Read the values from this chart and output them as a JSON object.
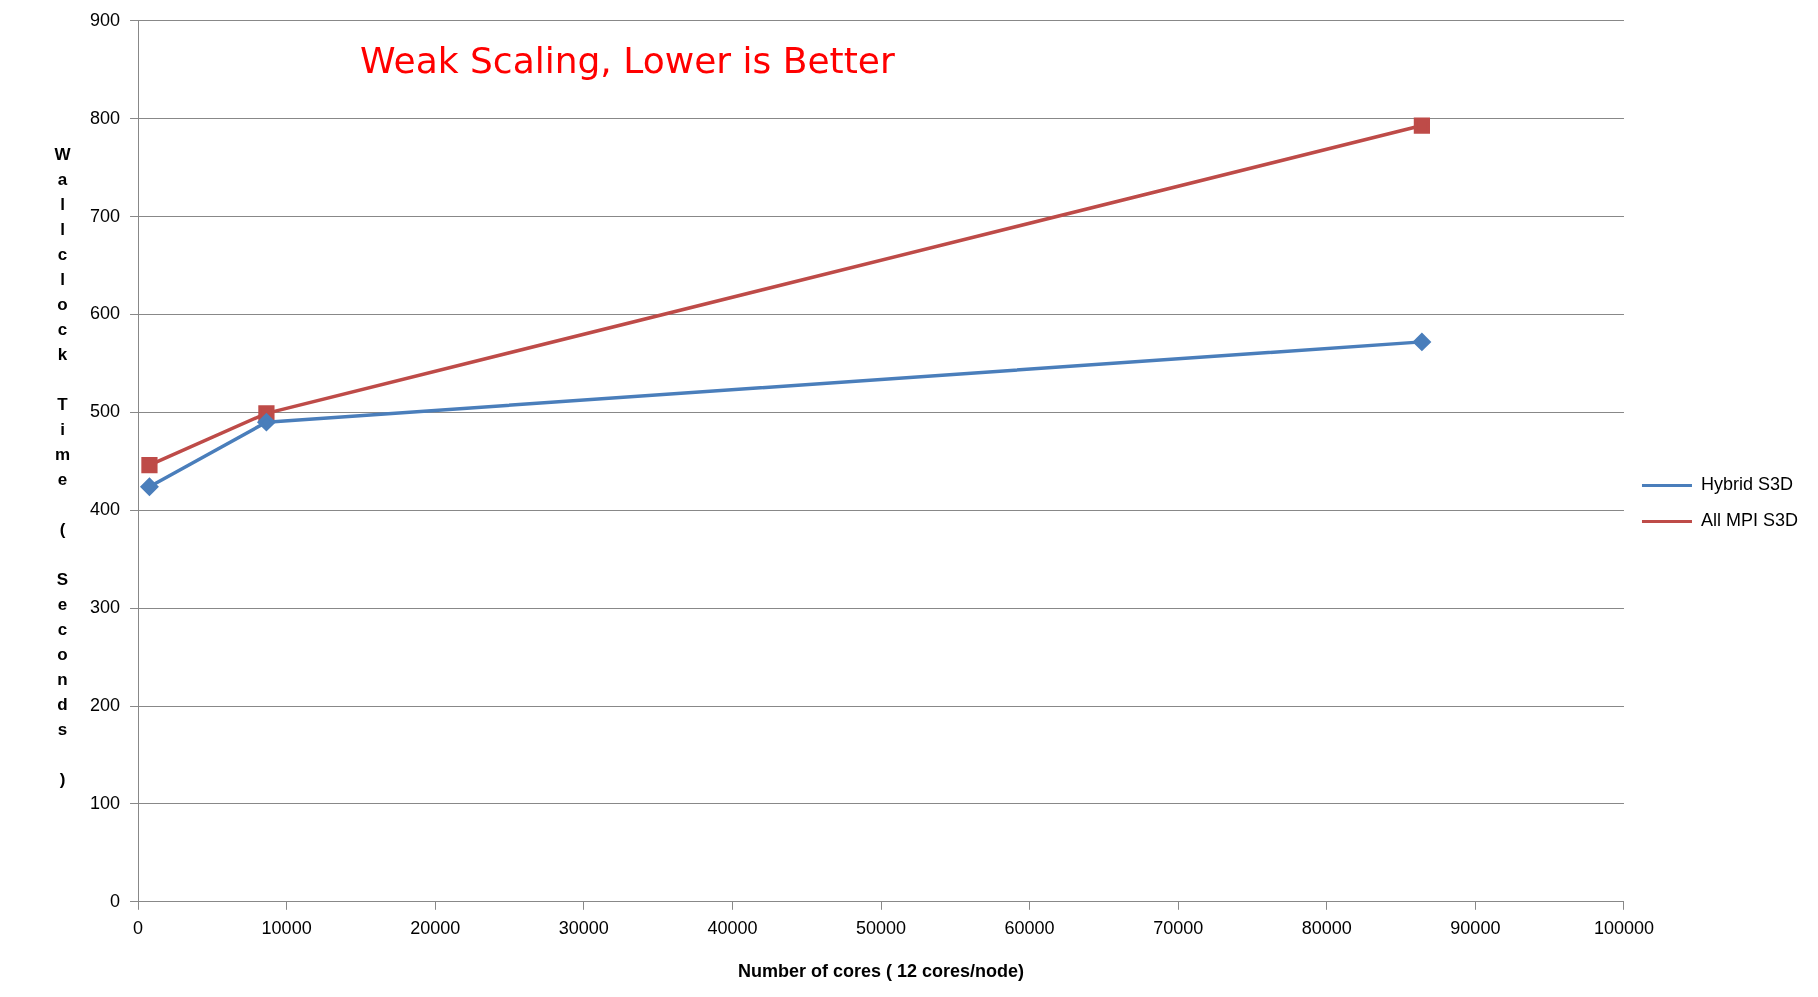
{
  "chart_data": {
    "type": "line",
    "title": "Weak Scaling, Lower is Better",
    "xlabel": "Number of cores ( 12 cores/node)",
    "ylabel": "Wallclock Time ( Seconds )",
    "series": [
      {
        "name": "Hybrid S3D",
        "color": "#4a7ebb",
        "marker": "diamond",
        "x": [
          768,
          8640,
          86400
        ],
        "values": [
          424,
          490,
          572
        ]
      },
      {
        "name": "All MPI S3D",
        "color": "#be4b48",
        "marker": "square",
        "x": [
          768,
          8640,
          86400
        ],
        "values": [
          446,
          499,
          793
        ]
      }
    ],
    "xlim": [
      0,
      100000
    ],
    "xticks": [
      0,
      10000,
      20000,
      30000,
      40000,
      50000,
      60000,
      70000,
      80000,
      90000,
      100000
    ],
    "ylim": [
      0,
      900
    ],
    "yticks": [
      0,
      100,
      200,
      300,
      400,
      500,
      600,
      700,
      800,
      900
    ],
    "grid": "y",
    "legend": "right",
    "line_style": "solid"
  }
}
